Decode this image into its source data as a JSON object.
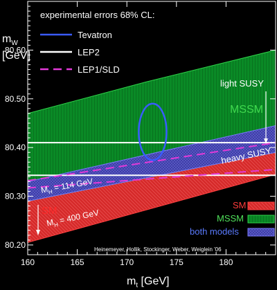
{
  "chart_data": {
    "type": "area",
    "title": "experimental errors 68% CL:",
    "xlabel": "m_t [GeV]",
    "ylabel": "m_W [GeV]",
    "xlim": [
      160,
      185
    ],
    "ylim": [
      80.18,
      80.7
    ],
    "x_ticks": [
      160,
      165,
      170,
      175,
      180
    ],
    "y_ticks": [
      80.2,
      80.3,
      80.4,
      80.5,
      80.6
    ],
    "grid": false,
    "legend_placement": "top-left",
    "bands": [
      {
        "name": "SM",
        "color": "#d62a2a",
        "upper": [
          [
            160,
            80.33
          ],
          [
            185,
            80.445
          ]
        ],
        "lower": [
          [
            160,
            80.205
          ],
          [
            185,
            80.345
          ]
        ]
      },
      {
        "name": "MSSM",
        "color": "#0a8a26",
        "upper": [
          [
            160,
            80.47
          ],
          [
            172,
            80.535
          ],
          [
            185,
            80.6
          ]
        ],
        "lower": [
          [
            160,
            80.29
          ],
          [
            185,
            80.39
          ]
        ]
      },
      {
        "name": "both models",
        "color": "#4a4ab8",
        "upper": [
          [
            160,
            80.33
          ],
          [
            185,
            80.445
          ]
        ],
        "lower": [
          [
            160,
            80.29
          ],
          [
            185,
            80.39
          ]
        ]
      }
    ],
    "measurements": [
      {
        "name": "Tevatron",
        "style": "ellipse",
        "color": "#3a5bff",
        "center": [
          172.6,
          80.432
        ],
        "half_width": 1.4,
        "half_height": 0.058
      },
      {
        "name": "LEP2",
        "style": "solid",
        "color": "#ffffff",
        "values": [
          80.41,
          80.343
        ]
      },
      {
        "name": "LEP1/SLD",
        "style": "dashed",
        "color": "#e33ad9",
        "lines": [
          [
            [
              160,
              80.332
            ],
            [
              185,
              80.41
            ]
          ],
          [
            [
              160,
              80.317
            ],
            [
              185,
              80.355
            ]
          ]
        ]
      }
    ],
    "annotations": [
      {
        "text": "light SUSY",
        "color": "#ffffff",
        "style": "arrow-down"
      },
      {
        "text": "MSSM",
        "color": "#41d94f"
      },
      {
        "text": "heavy SUSY",
        "color": "#ffffff"
      },
      {
        "text": "M_H = 114 GeV",
        "color": "#ffffff"
      },
      {
        "text": "SM",
        "color": "#ff2a2a"
      },
      {
        "text": "M_H = 400 GeV",
        "color": "#ffffff"
      }
    ],
    "legend_lower": [
      {
        "text": "SM",
        "color": "#ff3b3b"
      },
      {
        "text": "MSSM",
        "color": "#4fe05a"
      },
      {
        "text": "both models",
        "color": "#5a7bff"
      }
    ],
    "credit": "Heinemeyer, Hollik, Stockinger, Weber, Weiglein '06"
  }
}
